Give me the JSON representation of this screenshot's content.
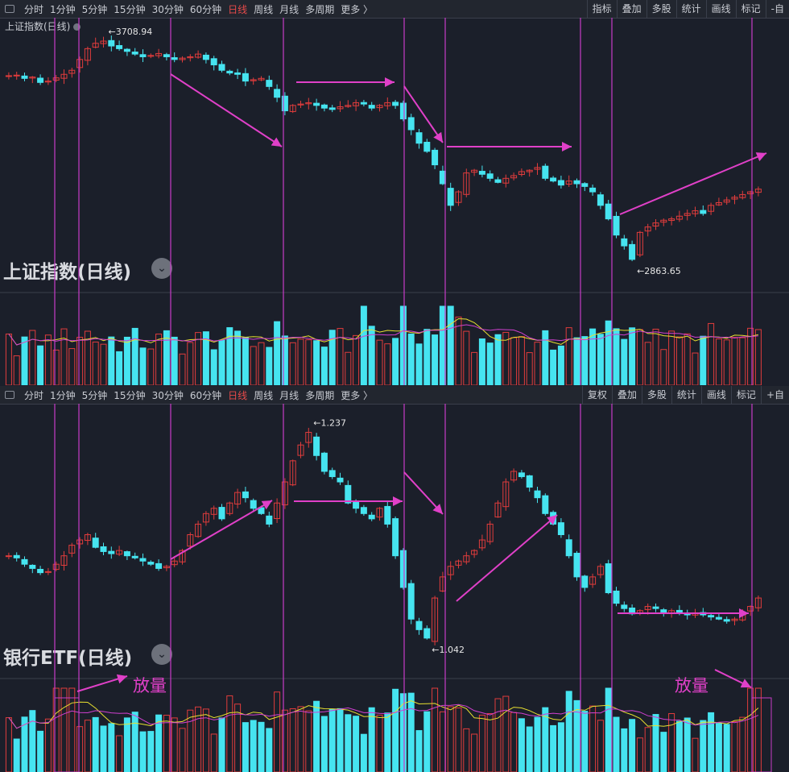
{
  "toolbar_top": {
    "timeframes": [
      "分时",
      "1分钟",
      "5分钟",
      "15分钟",
      "30分钟",
      "60分钟",
      "日线",
      "周线",
      "月线",
      "多周期",
      "更多 〉"
    ],
    "active": "日线",
    "tools": [
      "指标",
      "叠加",
      "多股",
      "统计",
      "画线",
      "标记",
      "-自"
    ]
  },
  "toolbar_bottom": {
    "timeframes": [
      "分时",
      "1分钟",
      "5分钟",
      "15分钟",
      "30分钟",
      "60分钟",
      "日线",
      "周线",
      "月线",
      "多周期",
      "更多 〉"
    ],
    "active": "日线",
    "tools": [
      "复权",
      "叠加",
      "多股",
      "统计",
      "画线",
      "标记",
      "+自"
    ]
  },
  "top_chart": {
    "small_title": "上证指数(日线)",
    "big_title": "上证指数(日线)",
    "high_label": "3708.94",
    "low_label": "2863.65"
  },
  "bottom_chart": {
    "big_title": "银行ETF(日线)",
    "high_label": "1.237",
    "low_label": "1.042",
    "annotation_left": "放量",
    "annotation_right": "放量"
  },
  "colors": {
    "up": "#e03c3c",
    "down": "#46e4f0",
    "background": "#1b1f2a",
    "vertical_line": "#c83cc8",
    "arrow": "#e040c8",
    "ma_yellow": "#e8e030",
    "ma_purple": "#d040d0"
  },
  "chart_data": [
    {
      "type": "candlestick",
      "series": [
        {
          "name": "上证指数",
          "close": [
            3580,
            3582,
            3570,
            3575,
            3555,
            3560,
            3572,
            3585,
            3600,
            3640,
            3680,
            3700,
            3708,
            3690,
            3680,
            3670,
            3660,
            3650,
            3655,
            3662,
            3650,
            3640,
            3645,
            3650,
            3660,
            3640,
            3620,
            3600,
            3590,
            3585,
            3560,
            3565,
            3570,
            3540,
            3500,
            3450,
            3470,
            3475,
            3480,
            3470,
            3460,
            3455,
            3465,
            3470,
            3480,
            3475,
            3460,
            3470,
            3480,
            3470,
            3420,
            3380,
            3330,
            3300,
            3250,
            3180,
            3100,
            3150,
            3220,
            3230,
            3215,
            3200,
            3185,
            3200,
            3210,
            3225,
            3230,
            3240,
            3200,
            3190,
            3175,
            3190,
            3180,
            3170,
            3150,
            3100,
            3050,
            2990,
            2950,
            2900,
            3000,
            3020,
            3035,
            3045,
            3050,
            3060,
            3070,
            3080,
            3070,
            3100,
            3110,
            3120,
            3130,
            3140,
            3150,
            3160
          ]
        }
      ],
      "high_label": 3708.94,
      "low_label": 2863.65
    },
    {
      "type": "candlestick",
      "series": [
        {
          "name": "银行ETF",
          "close": [
            1.12,
            1.118,
            1.112,
            1.108,
            1.104,
            1.105,
            1.112,
            1.12,
            1.13,
            1.135,
            1.14,
            1.128,
            1.124,
            1.122,
            1.125,
            1.12,
            1.118,
            1.115,
            1.112,
            1.108,
            1.11,
            1.115,
            1.125,
            1.14,
            1.15,
            1.16,
            1.165,
            1.155,
            1.17,
            1.18,
            1.175,
            1.165,
            1.16,
            1.15,
            1.17,
            1.19,
            1.21,
            1.225,
            1.237,
            1.215,
            1.2,
            1.195,
            1.19,
            1.17,
            1.165,
            1.16,
            1.155,
            1.165,
            1.15,
            1.12,
            1.09,
            1.06,
            1.05,
            1.042,
            1.08,
            1.1,
            1.11,
            1.115,
            1.12,
            1.125,
            1.135,
            1.15,
            1.17,
            1.19,
            1.2,
            1.195,
            1.185,
            1.175,
            1.16,
            1.15,
            1.14,
            1.12,
            1.1,
            1.09,
            1.1,
            1.11,
            1.085,
            1.075,
            1.07,
            1.065,
            1.068,
            1.072,
            1.07,
            1.066,
            1.068,
            1.066,
            1.064,
            1.066,
            1.064,
            1.062,
            1.06,
            1.058,
            1.06,
            1.066,
            1.072,
            1.08
          ]
        }
      ],
      "high_label": 1.237,
      "low_label": 1.042
    }
  ]
}
